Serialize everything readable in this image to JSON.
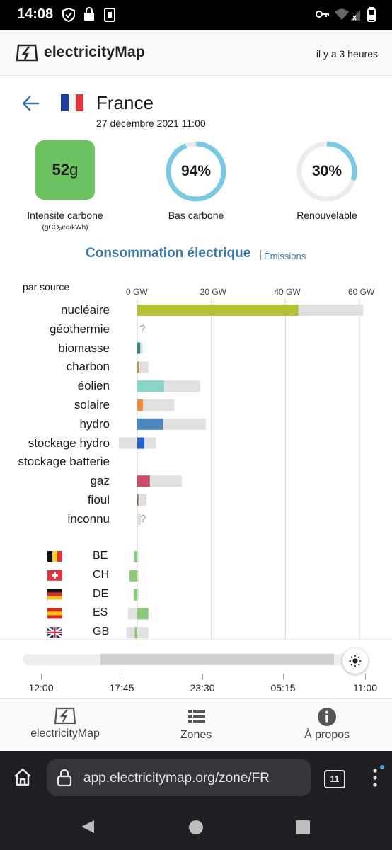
{
  "status_bar": {
    "time": "14:08"
  },
  "header": {
    "brand": "electricityMap",
    "time_ago": "il y a 3 heures"
  },
  "zone": {
    "country": "France",
    "date": "27 décembre 2021 11:00"
  },
  "metrics": {
    "carbon_intensity": {
      "value": "52",
      "unit": "g",
      "label": "Intensité carbone",
      "unit_label": "(gCO₂eq/kWh)",
      "color": "#6cc160"
    },
    "low_carbon": {
      "value": "94%",
      "fraction": 0.94,
      "label": "Bas carbone",
      "color": "#7ac9e2"
    },
    "renewable": {
      "value": "30%",
      "fraction": 0.3,
      "label": "Renouvelable",
      "color": "#7ac9e2"
    }
  },
  "tabs": {
    "main": "Consommation électrique",
    "separator": "|",
    "alt": "Émissions"
  },
  "chart_data": {
    "type": "bar",
    "title": "",
    "subtitle": "par source",
    "xlabel": "",
    "ylabel": "",
    "unit": "GW",
    "xlim": [
      0,
      60
    ],
    "ticks": [
      "0 GW",
      "20 GW",
      "40 GW",
      "60 GW"
    ],
    "categories": [
      "nucléaire",
      "géothermie",
      "biomasse",
      "charbon",
      "éolien",
      "solaire",
      "hydro",
      "stockage hydro",
      "stockage batterie",
      "gaz",
      "fioul",
      "inconnu"
    ],
    "series": [
      {
        "values": [
          43.5,
          null,
          0.8,
          0.5,
          7.2,
          1.5,
          7.0,
          1.9,
          0,
          3.4,
          0.3,
          0
        ]
      },
      {
        "values": [
          61.0,
          null,
          1.5,
          3.0,
          17.0,
          10.0,
          18.5,
          5.0,
          0,
          12.0,
          2.5,
          1.0
        ]
      }
    ],
    "capacity_min": [
      0,
      null,
      0,
      0,
      0,
      0,
      0,
      -5.0,
      0,
      0,
      0,
      0
    ],
    "colors": [
      "#b5c136",
      null,
      "#2f8a7e",
      "#c3924a",
      "#88d4c6",
      "#f08a3a",
      "#4b86be",
      "#2a5fc9",
      null,
      "#cd4a6a",
      "#8b6a3a",
      "#cccccc"
    ],
    "missing_marker": "?",
    "exchanges": {
      "zones": [
        "BE",
        "CH",
        "DE",
        "ES",
        "GB"
      ],
      "flow": [
        -0.8,
        -2.1,
        -0.9,
        3.0,
        -0.7
      ],
      "range_min": [
        -1.0,
        -2.0,
        -1.0,
        -2.5,
        -2.9
      ],
      "range_max": [
        0.5,
        0.5,
        0.5,
        3.0,
        3.0
      ],
      "flow_color": "#88cc77"
    }
  },
  "timeline": {
    "labels": [
      "12:00",
      "17:45",
      "23:30",
      "05:15",
      "11:00"
    ],
    "selected_fraction": 1.0
  },
  "bottom_nav": {
    "items": [
      {
        "label": "electricityMap"
      },
      {
        "label": "Zones"
      },
      {
        "label": "À propos"
      }
    ]
  },
  "browser": {
    "url": "app.electricitymap.org/zone/FR",
    "tab_count": "11"
  }
}
